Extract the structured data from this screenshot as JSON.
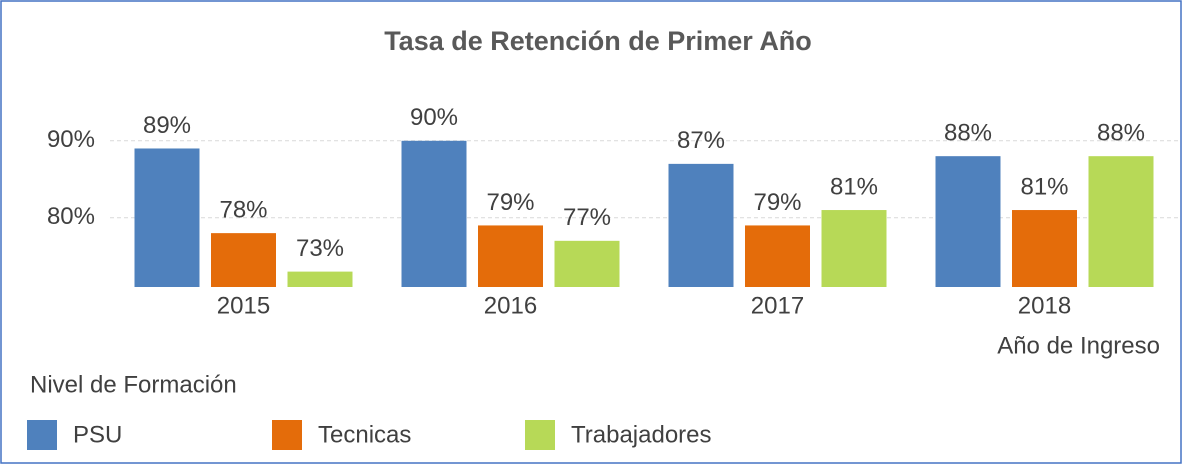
{
  "chart_data": {
    "type": "bar",
    "title": "Tasa de Retención de Primer Año",
    "x_label": "Año de Ingreso",
    "legend_title": "Nivel de Formación",
    "categories": [
      "2015",
      "2016",
      "2017",
      "2018"
    ],
    "series": [
      {
        "name": "PSU",
        "color": "#4f81bd",
        "values": [
          89,
          90,
          87,
          88
        ],
        "value_labels": [
          "89%",
          "90%",
          "87%",
          "88%"
        ]
      },
      {
        "name": "Tecnicas",
        "color": "#e46c0a",
        "values": [
          78,
          79,
          79,
          81
        ],
        "value_labels": [
          "78%",
          "79%",
          "79%",
          "81%"
        ]
      },
      {
        "name": "Trabajadores",
        "color": "#b7d957",
        "values": [
          73,
          77,
          81,
          88
        ],
        "value_labels": [
          "73%",
          "77%",
          "81%",
          "88%"
        ]
      }
    ],
    "ylim": [
      71,
      94
    ],
    "yticks": [
      {
        "value": 80,
        "label": "80%"
      },
      {
        "value": 90,
        "label": "90%"
      }
    ],
    "grid": true,
    "legend": "bottom-left"
  }
}
